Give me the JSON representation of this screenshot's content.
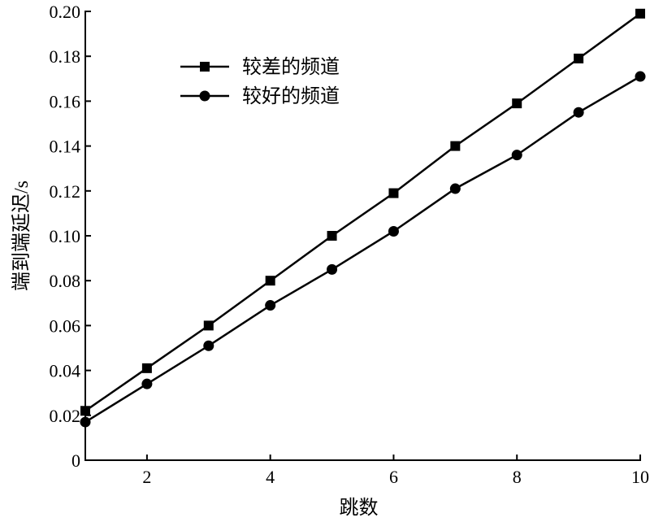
{
  "chart_data": {
    "type": "line",
    "x": [
      1,
      2,
      3,
      4,
      5,
      6,
      7,
      8,
      9,
      10
    ],
    "series": [
      {
        "name": "较差的频道",
        "marker": "square",
        "values": [
          0.022,
          0.041,
          0.06,
          0.08,
          0.1,
          0.119,
          0.14,
          0.159,
          0.179,
          0.199
        ]
      },
      {
        "name": "较好的频道",
        "marker": "circle",
        "values": [
          0.017,
          0.034,
          0.051,
          0.069,
          0.085,
          0.102,
          0.121,
          0.136,
          0.155,
          0.171
        ]
      }
    ],
    "xlabel": "跳数",
    "ylabel": "端到端延迟/s",
    "xlim": [
      1,
      10
    ],
    "ylim": [
      0,
      0.2
    ],
    "xticks": [
      2,
      4,
      6,
      8,
      10
    ],
    "xtick_labels": [
      "2",
      "4",
      "6",
      "8",
      "10"
    ],
    "yticks": [
      0,
      0.02,
      0.04,
      0.06,
      0.08,
      0.1,
      0.12,
      0.14,
      0.16,
      0.18,
      0.2
    ],
    "ytick_labels": [
      "0",
      "0.02",
      "0.04",
      "0.06",
      "0.08",
      "0.10",
      "0.12",
      "0.14",
      "0.16",
      "0.18",
      "0.20"
    ],
    "grid": false,
    "legend_position": "top-left",
    "colors": {
      "line": "#000000",
      "background": "#ffffff"
    }
  }
}
